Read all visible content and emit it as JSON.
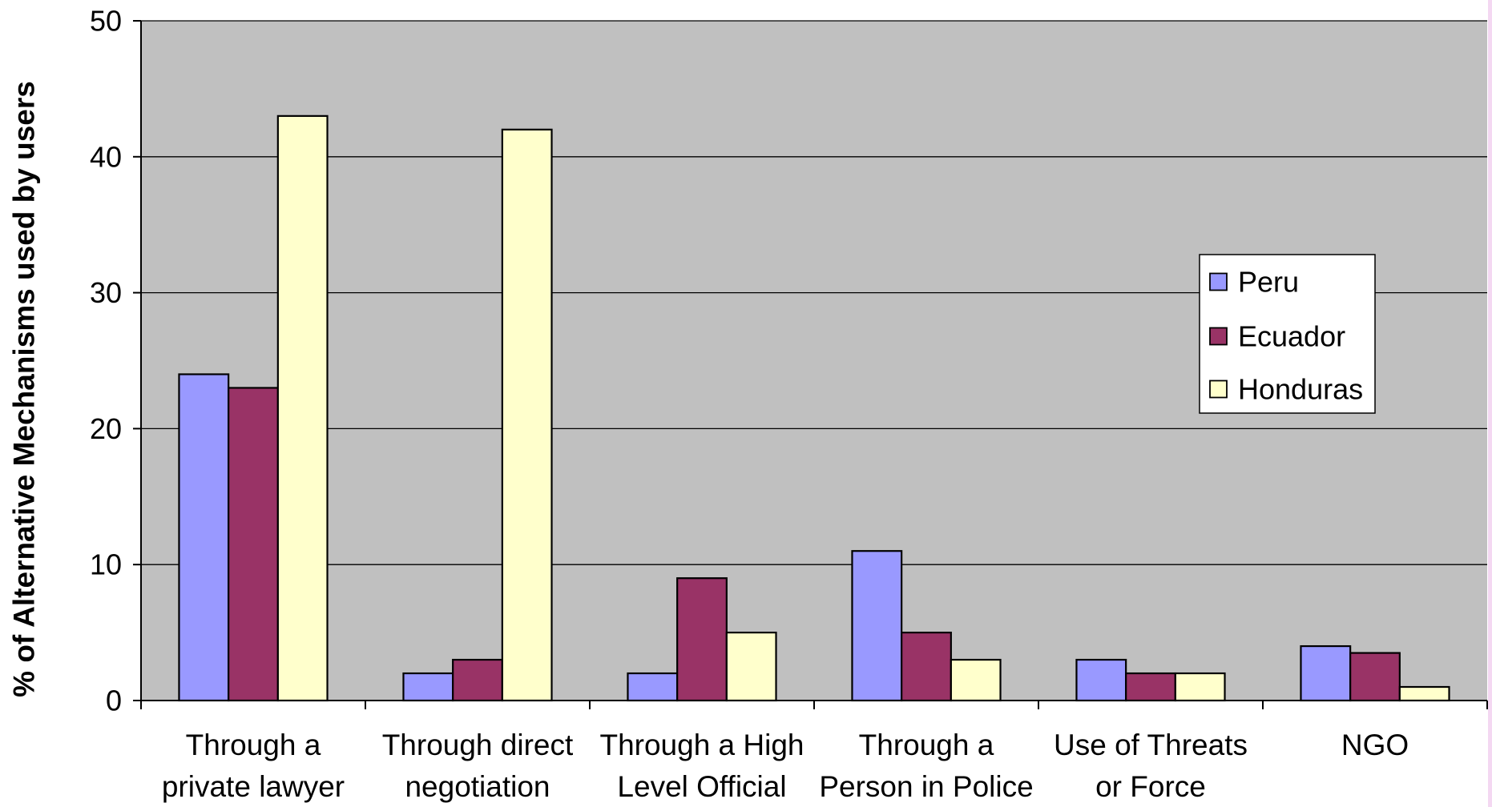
{
  "chart_data": {
    "type": "bar",
    "categories": [
      "Through a\nprivate lawyer",
      "Through direct\nnegotiation",
      "Through a High\nLevel Official",
      "Through a\nPerson in Police",
      "Use of Threats\nor Force",
      "NGO"
    ],
    "series": [
      {
        "name": "Peru",
        "color": "#9999FF",
        "values": [
          24,
          2,
          2,
          11,
          3,
          4
        ]
      },
      {
        "name": "Ecuador",
        "color": "#993366",
        "values": [
          23,
          3,
          9,
          5,
          2,
          3.5
        ]
      },
      {
        "name": "Honduras",
        "color": "#FFFFCC",
        "values": [
          43,
          42,
          5,
          3,
          2,
          1
        ]
      }
    ],
    "ylabel": "% of Alternative Mechanisms used by users",
    "ylim": [
      0,
      50
    ],
    "yticks": [
      0,
      10,
      20,
      30,
      40,
      50
    ],
    "grid": true,
    "legend": "right"
  },
  "colors": {
    "page_background": "#FFFFFF",
    "plot_background": "#C0C0C0",
    "axis": "#000000",
    "edge_strip": "#F4D8F2"
  }
}
